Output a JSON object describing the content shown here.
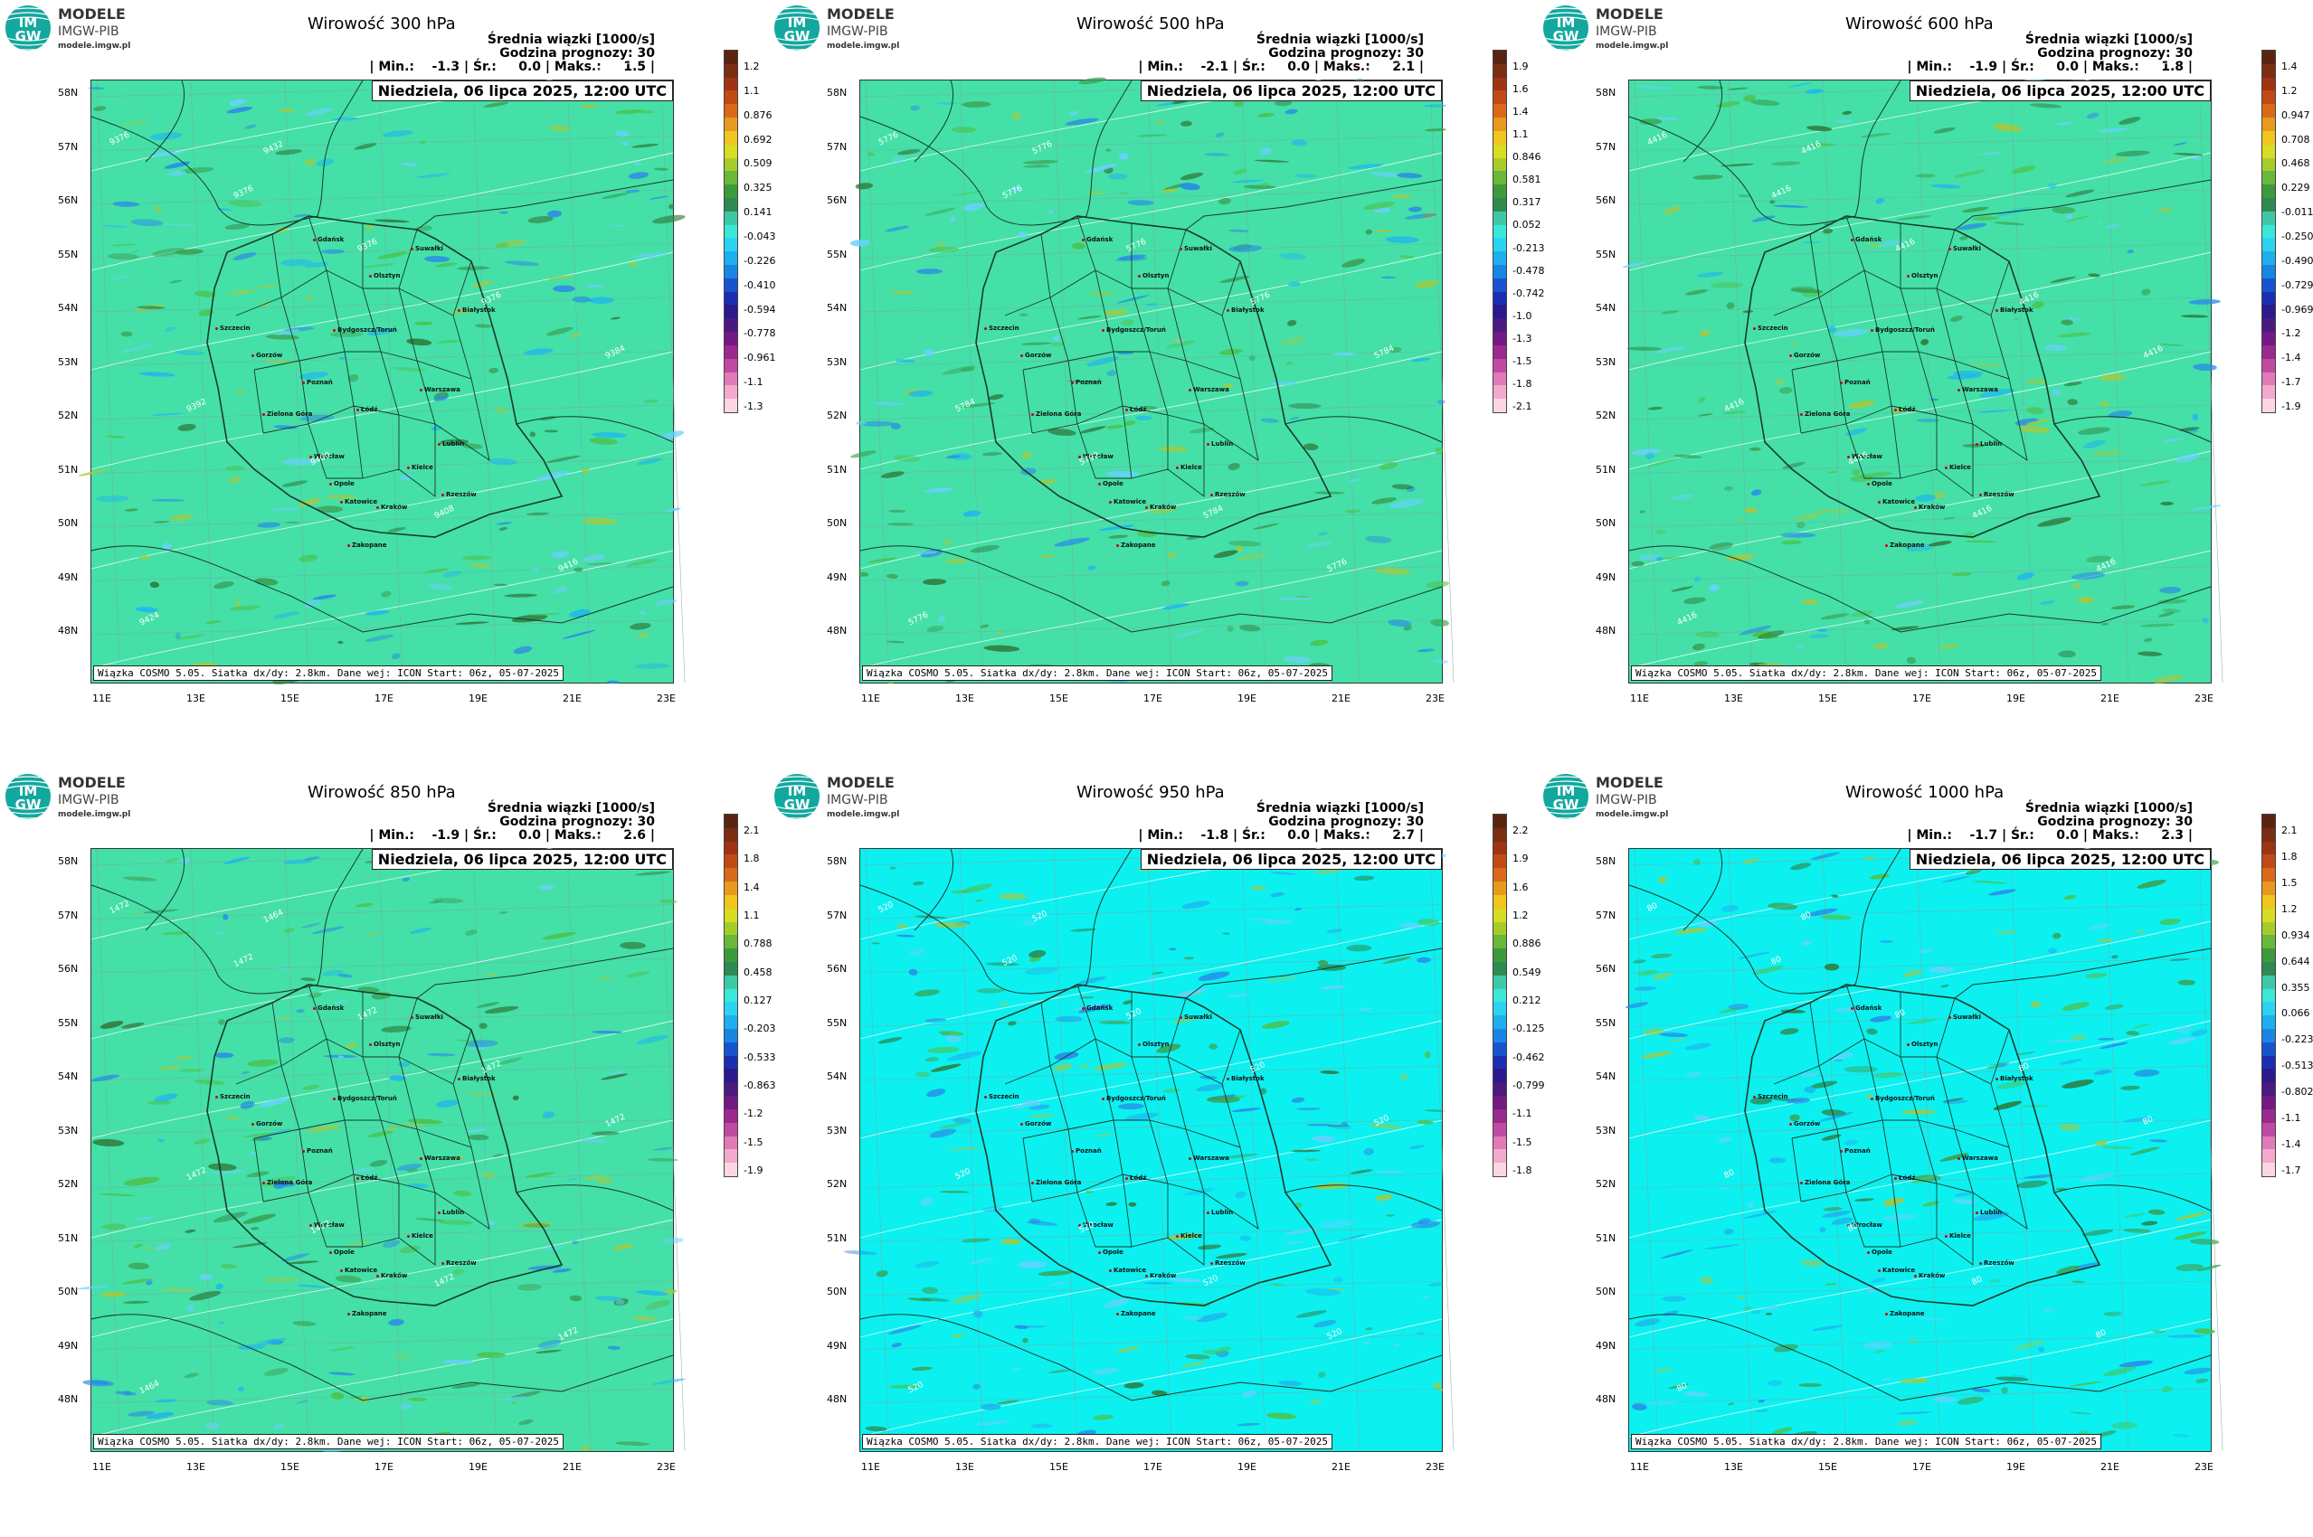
{
  "logo": {
    "line1": "MODELE",
    "line2": "IMGW-PIB",
    "line3": "modele.imgw.pl",
    "badge_top": "IM",
    "badge_bottom": "GW"
  },
  "common": {
    "subtitle": "Średnia wiązki [1000/s]",
    "forecast_hour": "Godzina prognozy: 30",
    "date": "Niedziela, 06 lipca 2025, 12:00 UTC",
    "footer": "Wiązka COSMO 5.05. Siatka dx/dy: 2.8km. Dane wej: ICON Start: 06z, 05-07-2025",
    "lat_labels": [
      "58N",
      "57N",
      "56N",
      "55N",
      "54N",
      "53N",
      "52N",
      "51N",
      "50N",
      "49N",
      "48N"
    ],
    "lon_labels": [
      "11E",
      "13E",
      "15E",
      "17E",
      "19E",
      "21E",
      "23E"
    ],
    "cities": [
      "Gdańsk",
      "Olsztyn",
      "Suwałki",
      "Szczecin",
      "Białystok",
      "Bydgoszcz/Toruń",
      "Gorzów",
      "Poznań",
      "Warszawa",
      "Łódź",
      "Zielona Góra",
      "Lublin",
      "Wrocław",
      "Kielce",
      "Opole",
      "Rzeszów",
      "Katowice",
      "Kraków",
      "Zakopane"
    ]
  },
  "colors": {
    "map_green": "#44e0a8",
    "map_cyan": "#0cf0f0",
    "border": "#1a3a2a",
    "isoline": "#ffffff"
  },
  "panels": [
    {
      "title": "Wirowość 300 hPa",
      "minmax": "| Min.:    -1.3 | Śr.:     0.0 | Maks.:     1.5 |",
      "bg": "green",
      "colorbar": [
        "1.2",
        "1.1",
        "0.876",
        "0.692",
        "0.509",
        "0.325",
        "0.141",
        "-0.043",
        "-0.226",
        "-0.410",
        "-0.594",
        "-0.778",
        "-0.961",
        "-1.1",
        "-1.3"
      ],
      "isolines": [
        "9376",
        "9376",
        "9376",
        "9376",
        "9384",
        "9392",
        "9400",
        "9408",
        "9416",
        "9424",
        "9432"
      ]
    },
    {
      "title": "Wirowość 500 hPa",
      "minmax": "| Min.:    -2.1 | Śr.:     0.0 | Maks.:     2.1 |",
      "bg": "green",
      "colorbar": [
        "1.9",
        "1.6",
        "1.4",
        "1.1",
        "0.846",
        "0.581",
        "0.317",
        "0.052",
        "-0.213",
        "-0.478",
        "-0.742",
        "-1.0",
        "-1.3",
        "-1.5",
        "-1.8",
        "-2.1"
      ],
      "isolines": [
        "5776",
        "5776",
        "5776",
        "5776",
        "5784",
        "5784",
        "5792",
        "5784",
        "5776",
        "5776",
        "5776"
      ]
    },
    {
      "title": "Wirowość 600 hPa",
      "minmax": "| Min.:    -1.9 | Śr.:     0.0 | Maks.:     1.8 |",
      "bg": "green",
      "colorbar": [
        "1.4",
        "1.2",
        "0.947",
        "0.708",
        "0.468",
        "0.229",
        "-0.011",
        "-0.250",
        "-0.490",
        "-0.729",
        "-0.969",
        "-1.2",
        "-1.4",
        "-1.7",
        "-1.9"
      ],
      "isolines": [
        "4416",
        "4416",
        "4416",
        "4416",
        "4416",
        "4416",
        "4416",
        "4416",
        "4416",
        "4416",
        "4416"
      ]
    },
    {
      "title": "Wirowość 850 hPa",
      "minmax": "| Min.:    -1.9 | Śr.:     0.0 | Maks.:     2.6 |",
      "bg": "green",
      "colorbar": [
        "2.1",
        "1.8",
        "1.4",
        "1.1",
        "0.788",
        "0.458",
        "0.127",
        "-0.203",
        "-0.533",
        "-0.863",
        "-1.2",
        "-1.5",
        "-1.9"
      ],
      "isolines": [
        "1472",
        "1472",
        "1472",
        "1472",
        "1472",
        "1472",
        "1472",
        "1472",
        "1472",
        "1464",
        "1464"
      ]
    },
    {
      "title": "Wirowość 950 hPa",
      "minmax": "| Min.:    -1.8 | Śr.:     0.0 | Maks.:     2.7 |",
      "bg": "cyan",
      "colorbar": [
        "2.2",
        "1.9",
        "1.6",
        "1.2",
        "0.886",
        "0.549",
        "0.212",
        "-0.125",
        "-0.462",
        "-0.799",
        "-1.1",
        "-1.5",
        "-1.8"
      ],
      "isolines": [
        "520",
        "520",
        "520",
        "520",
        "520",
        "520",
        "520",
        "520",
        "520",
        "520",
        "520"
      ]
    },
    {
      "title": "Wirowość 1000 hPa",
      "minmax": "| Min.:    -1.7 | Śr.:     0.0 | Maks.:     2.3 |",
      "bg": "cyan",
      "colorbar": [
        "2.1",
        "1.8",
        "1.5",
        "1.2",
        "0.934",
        "0.644",
        "0.355",
        "0.066",
        "-0.223",
        "-0.513",
        "-0.802",
        "-1.1",
        "-1.4",
        "-1.7"
      ],
      "isolines": [
        "80",
        "80",
        "80",
        "80",
        "80",
        "80",
        "80",
        "80",
        "80",
        "80",
        "80"
      ]
    }
  ]
}
